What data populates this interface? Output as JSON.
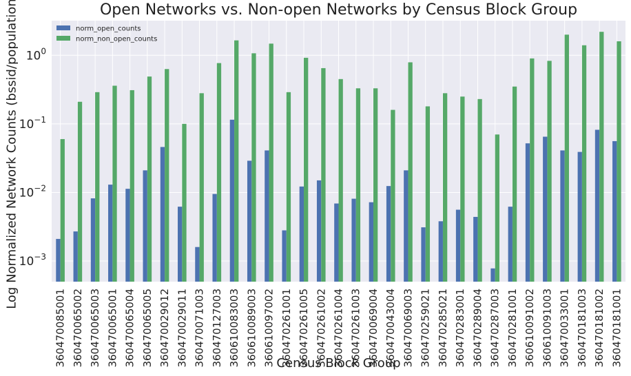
{
  "chart_data": {
    "type": "bar",
    "title": "Open Networks vs. Non-open Networks by Census Block Group",
    "xlabel": "Census Block Group",
    "ylabel": "Log Normalized Network Counts (bssid/population)",
    "yscale": "log",
    "ylim": [
      0.0005,
      3.2
    ],
    "yticks": [
      {
        "value": 0.001,
        "base": "10",
        "exp": "−3"
      },
      {
        "value": 0.01,
        "base": "10",
        "exp": "−2"
      },
      {
        "value": 0.1,
        "base": "10",
        "exp": "−1"
      },
      {
        "value": 1,
        "base": "10",
        "exp": "0"
      }
    ],
    "grid": true,
    "legend_position": "top-left",
    "categories": [
      "360470085001",
      "360470065002",
      "360470065003",
      "360470065001",
      "360470065004",
      "360470065005",
      "360470029012",
      "360470029011",
      "360470071003",
      "360470127003",
      "360610083003",
      "360610089003",
      "360610097002",
      "360470261001",
      "360470261005",
      "360470261002",
      "360470261004",
      "360470261003",
      "360470069004",
      "360470043004",
      "360470069003",
      "360470259021",
      "360470285021",
      "360470283001",
      "360470289004",
      "360470287003",
      "360470281001",
      "360610091002",
      "360610091003",
      "360470033001",
      "360470181003",
      "360470181002",
      "360470181001"
    ],
    "series": [
      {
        "name": "norm_open_counts",
        "color": "#4c72b0",
        "values": [
          0.0021,
          0.0027,
          0.0082,
          0.013,
          0.0113,
          0.021,
          0.046,
          0.0062,
          0.0016,
          0.0095,
          0.115,
          0.029,
          0.041,
          0.0028,
          0.0122,
          0.015,
          0.0069,
          0.0081,
          0.0072,
          0.0124,
          0.021,
          0.0031,
          0.0038,
          0.0056,
          0.0044,
          0.00078,
          0.0062,
          0.052,
          0.065,
          0.041,
          0.039,
          0.082,
          0.056
        ]
      },
      {
        "name": "norm_non_open_counts",
        "color": "#55a868",
        "values": [
          0.06,
          0.21,
          0.29,
          0.36,
          0.31,
          0.49,
          0.63,
          0.1,
          0.28,
          0.77,
          1.65,
          1.07,
          1.48,
          0.29,
          0.92,
          0.65,
          0.45,
          0.33,
          0.33,
          0.16,
          0.79,
          0.18,
          0.28,
          0.25,
          0.23,
          0.07,
          0.35,
          0.9,
          0.83,
          2.0,
          1.4,
          2.2,
          1.6
        ]
      }
    ]
  }
}
